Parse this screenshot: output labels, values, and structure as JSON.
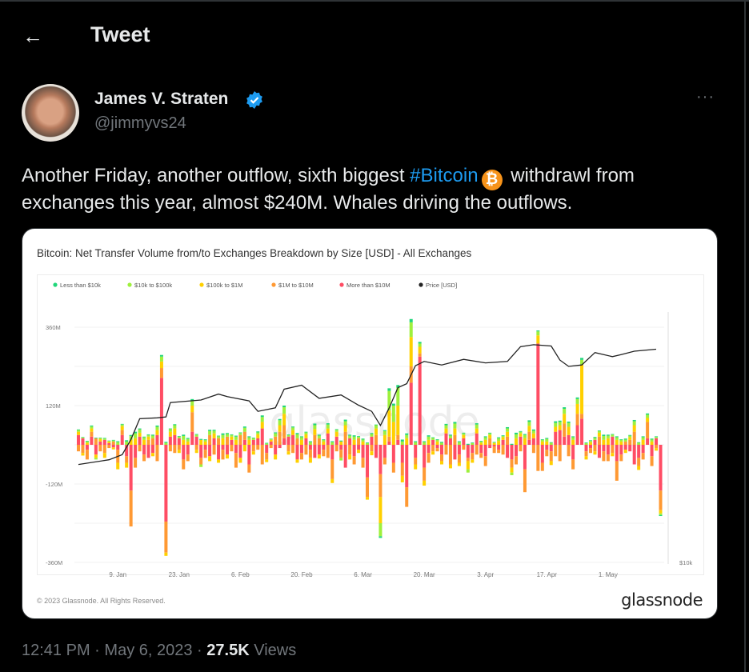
{
  "header": {
    "title": "Tweet",
    "back_icon": "arrow-left-icon"
  },
  "author": {
    "name": "James V. Straten",
    "handle": "@jimmyvs24",
    "verified": true,
    "more": "···"
  },
  "tweet": {
    "text_before": "Another Friday, another outflow, sixth biggest ",
    "hashtag": "#Bitcoin",
    "emoji": "₿",
    "text_after": " withdrawl from exchanges this year, almost $240M. Whales driving the outflows."
  },
  "card": {
    "copyright": "© 2023 Glassnode. All Rights Reserved.",
    "logo": "glassnode",
    "watermark": "glassnode"
  },
  "meta": {
    "time": "12:41 PM",
    "date": "May 6, 2023",
    "views_count": "27.5K",
    "views_label": "Views",
    "sep": "·"
  },
  "colors": {
    "accent": "#1d9bf0",
    "less_10k": "#20d67a",
    "10k_100k": "#9ef03c",
    "100k_1m": "#ffd000",
    "1m_10m": "#ff9933",
    "more_10m": "#ff4d64",
    "price": "#222222"
  },
  "chart_data": {
    "type": "bar",
    "stacked": true,
    "title": "Bitcoin: Net Transfer Volume from/to Exchanges Breakdown by Size [USD] - All Exchanges",
    "y_ticks": [
      "360M",
      "120M",
      "-120M",
      "-360M"
    ],
    "y_tick_values": [
      360,
      120,
      -120,
      -360
    ],
    "ylim": [
      -360,
      360
    ],
    "y2_scale": "log",
    "y2_ticks": [
      "$10k"
    ],
    "x_ticks": [
      "9. Jan",
      "23. Jan",
      "6. Feb",
      "20. Feb",
      "6. Mar",
      "20. Mar",
      "3. Apr",
      "17. Apr",
      "1. May"
    ],
    "x_tick_dates": [
      "2023-01-09",
      "2023-01-23",
      "2023-02-06",
      "2023-02-20",
      "2023-03-06",
      "2023-03-20",
      "2023-04-03",
      "2023-04-17",
      "2023-05-01"
    ],
    "first_date": "2022-12-31",
    "grid": true,
    "legend": "top-left",
    "series_names": [
      "Less than $10k",
      "$10k to $100k",
      "$100k to $1M",
      "$1M to $10M",
      "More than $10M",
      "Price [USD]"
    ],
    "daily_values_musd": [
      [
        2,
        5,
        10,
        -20,
        30
      ],
      [
        1,
        3,
        -8,
        -25,
        20
      ],
      [
        2,
        4,
        6,
        -30,
        -15
      ],
      [
        3,
        6,
        10,
        15,
        25
      ],
      [
        2,
        -5,
        -10,
        20,
        -30
      ],
      [
        1,
        3,
        8,
        -20,
        10
      ],
      [
        2,
        4,
        -15,
        -25,
        15
      ],
      [
        1,
        2,
        5,
        -10,
        5
      ],
      [
        2,
        3,
        -6,
        10,
        -8
      ],
      [
        3,
        8,
        -20,
        -40,
        -15
      ],
      [
        2,
        5,
        12,
        15,
        30
      ],
      [
        4,
        10,
        -15,
        -20,
        -35
      ],
      [
        3,
        12,
        15,
        -110,
        -140
      ],
      [
        5,
        15,
        20,
        -30,
        -40
      ],
      [
        3,
        10,
        12,
        -20,
        25
      ],
      [
        2,
        8,
        15,
        -20,
        -30
      ],
      [
        2,
        5,
        10,
        15,
        -40
      ],
      [
        3,
        8,
        -10,
        20,
        -25
      ],
      [
        4,
        10,
        15,
        -50,
        30
      ],
      [
        5,
        15,
        20,
        30,
        205
      ],
      [
        3,
        6,
        -10,
        -95,
        -235
      ],
      [
        2,
        8,
        15,
        -20,
        25
      ],
      [
        3,
        10,
        20,
        -25,
        30
      ],
      [
        2,
        5,
        -10,
        -15,
        20
      ],
      [
        4,
        12,
        15,
        -30,
        -45
      ],
      [
        3,
        8,
        10,
        -20,
        -30
      ],
      [
        5,
        15,
        20,
        60,
        40
      ],
      [
        2,
        6,
        -10,
        -15,
        25
      ],
      [
        3,
        -8,
        15,
        -20,
        -40
      ],
      [
        2,
        5,
        10,
        -25,
        -15
      ],
      [
        4,
        12,
        -15,
        30,
        -35
      ],
      [
        3,
        8,
        15,
        -30,
        20
      ],
      [
        2,
        6,
        -10,
        20,
        -45
      ],
      [
        5,
        10,
        20,
        -30,
        -15
      ],
      [
        3,
        8,
        -12,
        25,
        -30
      ],
      [
        2,
        5,
        10,
        -20,
        15
      ],
      [
        3,
        10,
        15,
        -45,
        -25
      ],
      [
        2,
        6,
        -15,
        30,
        -40
      ],
      [
        4,
        12,
        -20,
        25,
        15
      ],
      [
        3,
        8,
        15,
        -25,
        -60
      ],
      [
        2,
        5,
        -10,
        -20,
        15
      ],
      [
        3,
        6,
        12,
        -15,
        20
      ],
      [
        5,
        15,
        20,
        -60,
        50
      ],
      [
        2,
        4,
        -8,
        -20,
        -25
      ],
      [
        1,
        3,
        5,
        -10,
        10
      ],
      [
        3,
        10,
        -15,
        25,
        -30
      ],
      [
        4,
        15,
        20,
        40,
        -10
      ],
      [
        5,
        20,
        35,
        40,
        20
      ],
      [
        2,
        5,
        -10,
        -20,
        25
      ],
      [
        3,
        8,
        15,
        -25,
        30
      ],
      [
        4,
        12,
        -10,
        20,
        -45
      ],
      [
        3,
        8,
        15,
        -20,
        -25
      ],
      [
        2,
        6,
        12,
        -30,
        20
      ],
      [
        3,
        8,
        -15,
        -25,
        -15
      ],
      [
        5,
        12,
        18,
        30,
        -40
      ],
      [
        3,
        8,
        -12,
        20,
        -30
      ],
      [
        2,
        5,
        10,
        -20,
        -15
      ],
      [
        4,
        12,
        15,
        -40,
        35
      ],
      [
        3,
        8,
        -12,
        -60,
        -45
      ],
      [
        2,
        6,
        15,
        -20,
        25
      ],
      [
        3,
        -8,
        10,
        -25,
        -15
      ],
      [
        5,
        12,
        20,
        40,
        -70
      ],
      [
        3,
        8,
        -15,
        -30,
        20
      ],
      [
        4,
        10,
        15,
        -25,
        -35
      ],
      [
        2,
        5,
        -10,
        20,
        -15
      ],
      [
        3,
        6,
        10,
        -30,
        -40
      ],
      [
        2,
        5,
        -8,
        -60,
        -100
      ],
      [
        3,
        8,
        -12,
        -20,
        25
      ],
      [
        2,
        10,
        20,
        30,
        -40
      ],
      [
        -5,
        -40,
        -80,
        -70,
        -90
      ],
      [
        3,
        12,
        30,
        -20,
        -40
      ],
      [
        8,
        60,
        80,
        15,
        10
      ],
      [
        6,
        50,
        70,
        -30,
        -55
      ],
      [
        8,
        55,
        90,
        15,
        15
      ],
      [
        6,
        10,
        -20,
        -40,
        -55
      ],
      [
        5,
        10,
        20,
        -60,
        -130
      ],
      [
        10,
        45,
        90,
        50,
        190
      ],
      [
        3,
        8,
        -15,
        -20,
        -40
      ],
      [
        5,
        10,
        20,
        10,
        270
      ],
      [
        3,
        8,
        -15,
        -40,
        -70
      ],
      [
        4,
        10,
        15,
        -30,
        -25
      ],
      [
        2,
        6,
        -10,
        -20,
        15
      ],
      [
        2,
        5,
        10,
        -10,
        -10
      ],
      [
        3,
        6,
        -10,
        -20,
        -30
      ],
      [
        4,
        10,
        15,
        -30,
        35
      ],
      [
        3,
        8,
        -12,
        -60,
        20
      ],
      [
        5,
        15,
        20,
        30,
        -45
      ],
      [
        3,
        8,
        -10,
        -25,
        -30
      ],
      [
        2,
        5,
        10,
        -15,
        20
      ],
      [
        3,
        -10,
        -25,
        -10,
        -40
      ],
      [
        2,
        5,
        -10,
        -20,
        -25
      ],
      [
        4,
        12,
        15,
        -30,
        35
      ],
      [
        2,
        4,
        6,
        -15,
        -25
      ],
      [
        3,
        8,
        15,
        -30,
        -35
      ],
      [
        2,
        5,
        10,
        20,
        -10
      ],
      [
        1,
        3,
        5,
        -20,
        -5
      ],
      [
        3,
        8,
        12,
        -10,
        -15
      ],
      [
        2,
        4,
        8,
        -30,
        15
      ],
      [
        4,
        10,
        15,
        25,
        -40
      ],
      [
        3,
        -8,
        -15,
        -25,
        -45
      ],
      [
        5,
        12,
        20,
        -25,
        -35
      ],
      [
        2,
        5,
        10,
        -20,
        25
      ],
      [
        3,
        10,
        20,
        -70,
        -75
      ],
      [
        5,
        12,
        18,
        25,
        15
      ],
      [
        4,
        8,
        15,
        -25,
        20
      ],
      [
        3,
        12,
        25,
        -80,
        310
      ],
      [
        2,
        5,
        10,
        -25,
        -55
      ],
      [
        3,
        8,
        10,
        -20,
        -15
      ],
      [
        2,
        6,
        -12,
        -30,
        -20
      ],
      [
        5,
        12,
        15,
        -35,
        40
      ],
      [
        4,
        10,
        15,
        -50,
        45
      ],
      [
        5,
        15,
        30,
        40,
        25
      ],
      [
        4,
        12,
        25,
        -35,
        30
      ],
      [
        3,
        8,
        15,
        -30,
        -45
      ],
      [
        5,
        15,
        30,
        35,
        60
      ],
      [
        6,
        15,
        150,
        15,
        80
      ],
      [
        2,
        5,
        -10,
        -15,
        -20
      ],
      [
        2,
        4,
        8,
        -15,
        -10
      ],
      [
        3,
        6,
        -10,
        -20,
        15
      ],
      [
        2,
        5,
        12,
        25,
        -40
      ],
      [
        4,
        12,
        15,
        -30,
        -20
      ],
      [
        3,
        8,
        20,
        -20,
        -30
      ],
      [
        2,
        6,
        -10,
        -25,
        25
      ],
      [
        3,
        8,
        15,
        -60,
        -50
      ],
      [
        2,
        5,
        10,
        -20,
        -30
      ],
      [
        3,
        6,
        -10,
        10,
        -15
      ],
      [
        2,
        5,
        8,
        15,
        -20
      ],
      [
        4,
        12,
        20,
        40,
        -60
      ],
      [
        2,
        6,
        -12,
        -25,
        -40
      ],
      [
        3,
        8,
        15,
        -20,
        -25
      ],
      [
        4,
        10,
        12,
        50,
        20
      ],
      [
        3,
        6,
        10,
        -30,
        -35
      ],
      [
        2,
        4,
        -8,
        -10,
        20
      ],
      [
        -3,
        -5,
        -10,
        -60,
        -140
      ]
    ],
    "price_usd": [
      [
        "2022-12-31",
        16550
      ],
      [
        "2023-01-07",
        16950
      ],
      [
        "2023-01-10",
        17400
      ],
      [
        "2023-01-12",
        18800
      ],
      [
        "2023-01-14",
        20900
      ],
      [
        "2023-01-18",
        21000
      ],
      [
        "2023-01-20",
        21100
      ],
      [
        "2023-01-21",
        22700
      ],
      [
        "2023-01-28",
        23000
      ],
      [
        "2023-02-01",
        23700
      ],
      [
        "2023-02-03",
        23400
      ],
      [
        "2023-02-08",
        22900
      ],
      [
        "2023-02-10",
        21700
      ],
      [
        "2023-02-14",
        22100
      ],
      [
        "2023-02-16",
        24300
      ],
      [
        "2023-02-20",
        24800
      ],
      [
        "2023-02-24",
        23200
      ],
      [
        "2023-03-01",
        23600
      ],
      [
        "2023-03-05",
        22400
      ],
      [
        "2023-03-08",
        21700
      ],
      [
        "2023-03-10",
        20200
      ],
      [
        "2023-03-12",
        22100
      ],
      [
        "2023-03-14",
        24500
      ],
      [
        "2023-03-16",
        25000
      ],
      [
        "2023-03-18",
        27400
      ],
      [
        "2023-03-20",
        28000
      ],
      [
        "2023-03-24",
        27500
      ],
      [
        "2023-03-29",
        28300
      ],
      [
        "2023-04-03",
        27800
      ],
      [
        "2023-04-08",
        28000
      ],
      [
        "2023-04-11",
        30200
      ],
      [
        "2023-04-14",
        30500
      ],
      [
        "2023-04-18",
        30300
      ],
      [
        "2023-04-20",
        28200
      ],
      [
        "2023-04-22",
        27300
      ],
      [
        "2023-04-25",
        27500
      ],
      [
        "2023-04-28",
        29300
      ],
      [
        "2023-05-02",
        28700
      ],
      [
        "2023-05-04",
        29000
      ],
      [
        "2023-05-07",
        29500
      ],
      [
        "2023-05-12",
        29800
      ]
    ]
  }
}
